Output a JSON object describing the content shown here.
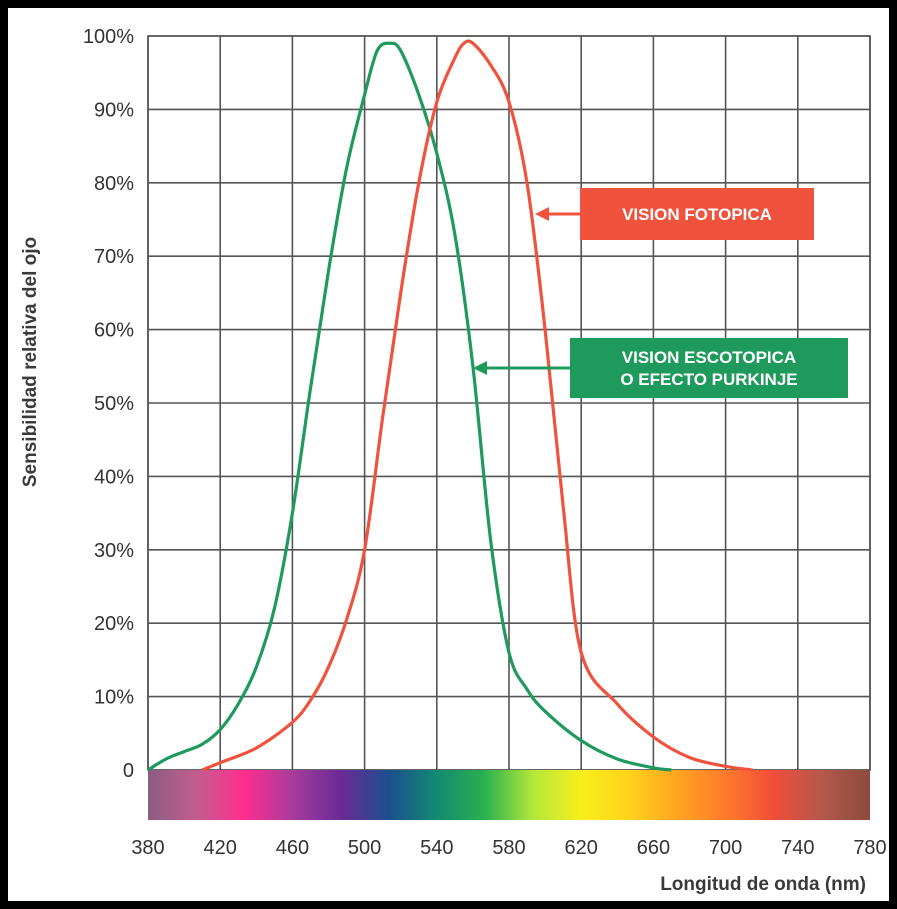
{
  "chart_data": {
    "type": "line",
    "xlabel": "Longitud de onda (nm)",
    "ylabel": "Sensibilidad relativa del ojo",
    "xlim": [
      380,
      780
    ],
    "ylim": [
      0,
      100
    ],
    "x_ticks": [
      "380",
      "420",
      "460",
      "500",
      "540",
      "580",
      "620",
      "660",
      "700",
      "740",
      "780"
    ],
    "y_ticks": [
      "0",
      "10%",
      "20%",
      "30%",
      "40%",
      "50%",
      "60%",
      "70%",
      "80%",
      "90%",
      "100%"
    ],
    "grid": true,
    "series": [
      {
        "name": "VISION ESCOTOPICA O EFECTO PURKINJE",
        "label_lines": [
          "VISION ESCOTOPICA",
          "O EFECTO PURKINJE"
        ],
        "color": "#1e9a5c",
        "x": [
          380,
          390,
          400,
          410,
          420,
          430,
          440,
          450,
          460,
          470,
          480,
          490,
          500,
          507,
          514,
          520,
          530,
          540,
          550,
          560,
          570,
          580,
          590,
          600,
          620,
          640,
          660,
          670
        ],
        "y": [
          0,
          1.5,
          2.5,
          3.5,
          5.5,
          9,
          14,
          22,
          35,
          52,
          68,
          82,
          92,
          98,
          99,
          98,
          92,
          84,
          73,
          55,
          31,
          16,
          11,
          8,
          4,
          1.5,
          0.3,
          0
        ]
      },
      {
        "name": "VISION FOTOPICA",
        "label_lines": [
          "VISION FOTOPICA"
        ],
        "color": "#f0533d",
        "x": [
          410,
          420,
          440,
          460,
          470,
          480,
          490,
          500,
          510,
          520,
          530,
          540,
          550,
          555,
          560,
          570,
          580,
          590,
          600,
          610,
          620,
          640,
          660,
          680,
          700,
          715
        ],
        "y": [
          0,
          1,
          3,
          6.5,
          9.5,
          14,
          20.5,
          30,
          48,
          65,
          80,
          91,
          97,
          99,
          99,
          96,
          91,
          80,
          60,
          36,
          16,
          9,
          4.5,
          1.7,
          0.5,
          0
        ]
      }
    ],
    "color_bar": [
      "#8b5d83",
      "#c25d8f",
      "#ff2d8e",
      "#a63c9c",
      "#6b2a96",
      "#1d4f8e",
      "#128a72",
      "#2ab14f",
      "#b3e83a",
      "#f7ef1c",
      "#ffd21c",
      "#ffa421",
      "#ff7a2a",
      "#f04e3a",
      "#b4584c",
      "#8c4b3d"
    ]
  }
}
